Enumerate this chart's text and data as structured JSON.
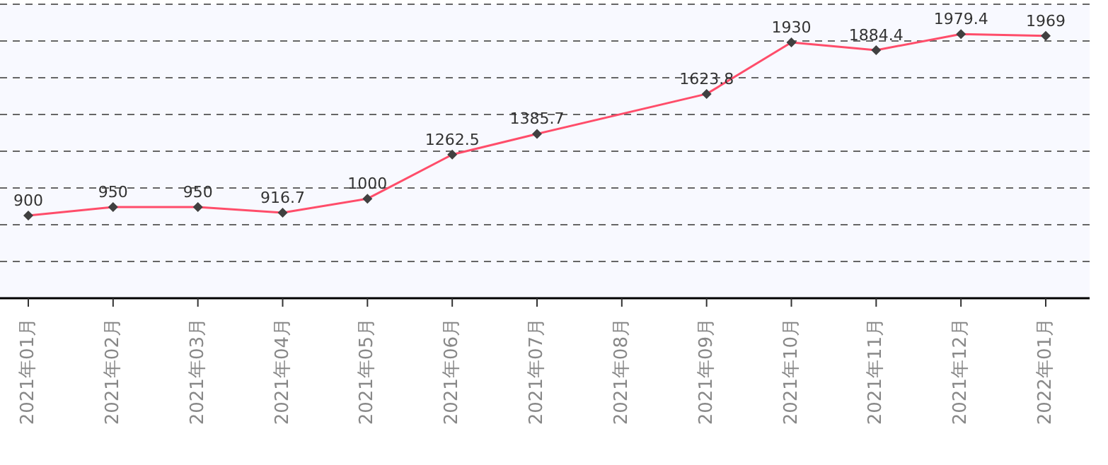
{
  "chart_data": {
    "type": "line",
    "categories": [
      "2021年01月",
      "2021年02月",
      "2021年03月",
      "2021年04月",
      "2021年05月",
      "2021年06月",
      "2021年07月",
      "2021年08月",
      "2021年09月",
      "2021年10月",
      "2021年11月",
      "2021年12月",
      "2022年01月"
    ],
    "series": [
      {
        "color": "#ff4d6a",
        "values": [
          900,
          950,
          950,
          916.7,
          1000,
          1262.5,
          1385.7,
          null,
          1623.8,
          1930,
          1884.4,
          1979.4,
          1969
        ]
      }
    ],
    "grid": "y",
    "marker": "diamond",
    "line_style": "solid",
    "data_labels": true,
    "tick_labels": "x"
  }
}
